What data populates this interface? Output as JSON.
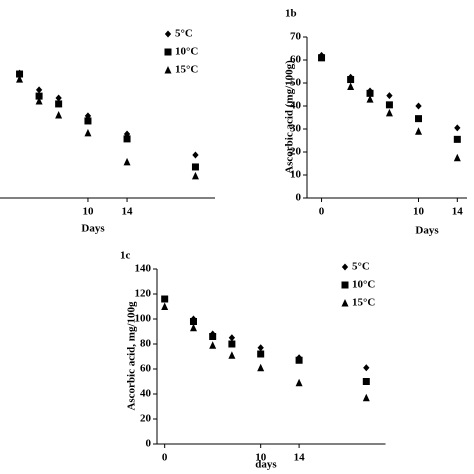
{
  "chart_data": [
    {
      "type": "scatter",
      "x_label": "Days",
      "x": [
        3,
        5,
        7,
        10,
        14,
        21
      ],
      "xlim": [
        1,
        23
      ],
      "xticks": [
        10,
        14
      ],
      "ylim": [
        0,
        70
      ],
      "legend": true,
      "series": [
        {
          "name": "5°C",
          "color": "#000000",
          "marker": "diamond",
          "values": [
            54.3,
            47,
            43.5,
            35.7,
            27.8,
            18.7
          ]
        },
        {
          "name": "10°C",
          "color": "#000000",
          "marker": "square",
          "values": [
            53.9,
            44.3,
            40.9,
            33.5,
            25.7,
            13.5
          ]
        },
        {
          "name": "15°C",
          "color": "#000000",
          "marker": "triangle",
          "values": [
            51.7,
            42.2,
            36.1,
            28.3,
            15.7,
            9.6
          ]
        }
      ]
    },
    {
      "type": "scatter",
      "title": "1b",
      "x_label": "Days",
      "y_label": "Ascorbic acid (mg/100g)",
      "x": [
        0,
        3,
        5,
        7,
        10,
        14
      ],
      "xlim": [
        -1.5,
        15
      ],
      "xticks": [
        0,
        10,
        14
      ],
      "ylim": [
        0,
        70
      ],
      "yticks": [
        0,
        10,
        20,
        30,
        40,
        50,
        60,
        70
      ],
      "legend": false,
      "series": [
        {
          "name": "5°C",
          "color": "#000000",
          "marker": "diamond",
          "values": [
            62,
            52.5,
            46.5,
            44.5,
            40,
            30.5
          ]
        },
        {
          "name": "10°C",
          "color": "#000000",
          "marker": "square",
          "values": [
            61,
            51.5,
            45.5,
            40.5,
            34.5,
            25.5
          ]
        },
        {
          "name": "15°C",
          "color": "#000000",
          "marker": "triangle",
          "values": [
            61,
            48.5,
            43,
            37,
            29,
            17.5
          ]
        }
      ]
    },
    {
      "type": "scatter",
      "title": "1c",
      "x_label": "days",
      "y_label": "Ascorbic acid, mg/100g",
      "x": [
        0,
        3,
        5,
        7,
        10,
        14,
        21
      ],
      "xlim": [
        -0.8,
        23
      ],
      "xticks": [
        0,
        10,
        14
      ],
      "ylim": [
        0,
        140
      ],
      "yticks": [
        0,
        20,
        40,
        60,
        80,
        100,
        120,
        140
      ],
      "legend": true,
      "series": [
        {
          "name": "5°C",
          "color": "#000000",
          "marker": "diamond",
          "values": [
            116,
            100,
            88,
            85,
            77,
            69,
            61
          ]
        },
        {
          "name": "10°C",
          "color": "#000000",
          "marker": "square",
          "values": [
            116,
            98,
            86,
            80,
            72,
            67,
            50
          ]
        },
        {
          "name": "15°C",
          "color": "#000000",
          "marker": "triangle",
          "values": [
            110,
            93,
            79,
            71,
            61,
            49,
            37
          ]
        }
      ]
    }
  ]
}
